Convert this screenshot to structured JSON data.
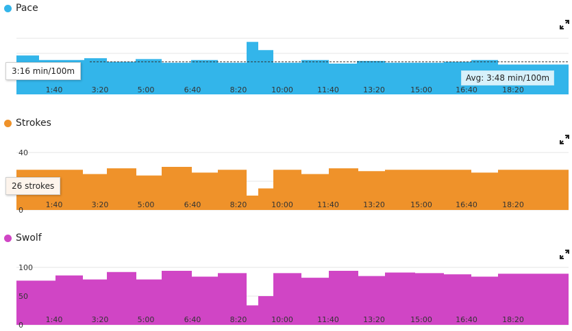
{
  "chart_data": [
    {
      "type": "area",
      "title": "Pace",
      "color": "#33b5ea",
      "x_ticks": [
        "1:40",
        "3:20",
        "5:00",
        "6:40",
        "8:20",
        "10:00",
        "11:40",
        "13:20",
        "15:00",
        "16:40",
        "18:20"
      ],
      "tooltip": "3:16 min/100m",
      "average_label": "Avg: 3:48 min/100m",
      "step_series": [
        {
          "start": 0,
          "end": 33,
          "value": 3.45
        },
        {
          "start": 33,
          "end": 57,
          "value": 3.7
        },
        {
          "start": 57,
          "end": 99,
          "value": 3.7
        },
        {
          "start": 99,
          "end": 132,
          "value": 3.6
        },
        {
          "start": 132,
          "end": 174,
          "value": 3.8
        },
        {
          "start": 174,
          "end": 212,
          "value": 3.65
        },
        {
          "start": 212,
          "end": 255,
          "value": 3.85
        },
        {
          "start": 255,
          "end": 294,
          "value": 3.7
        },
        {
          "start": 294,
          "end": 336,
          "value": 3.85
        },
        {
          "start": 336,
          "end": 353,
          "value": 2.7
        },
        {
          "start": 353,
          "end": 375,
          "value": 3.15
        },
        {
          "start": 375,
          "end": 416,
          "value": 3.85
        },
        {
          "start": 416,
          "end": 456,
          "value": 3.7
        },
        {
          "start": 456,
          "end": 497,
          "value": 3.9
        },
        {
          "start": 497,
          "end": 538,
          "value": 3.75
        },
        {
          "start": 538,
          "end": 582,
          "value": 3.85
        },
        {
          "start": 582,
          "end": 624,
          "value": 3.85
        },
        {
          "start": 624,
          "end": 664,
          "value": 3.8
        },
        {
          "start": 664,
          "end": 703,
          "value": 3.7
        },
        {
          "start": 703,
          "end": 830,
          "value": 3.95
        }
      ],
      "average": 3.8,
      "ylim": [
        2.5,
        5.6
      ],
      "inverted": true
    },
    {
      "type": "area",
      "title": "Strokes",
      "color": "#ef922a",
      "y_ticks": [
        "0",
        "20",
        "40"
      ],
      "x_ticks": [
        "1:40",
        "3:20",
        "5:00",
        "6:40",
        "8:20",
        "10:00",
        "11:40",
        "13:20",
        "15:00",
        "16:40",
        "18:20"
      ],
      "tooltip": "26 strokes",
      "step_series": [
        {
          "start": 0,
          "end": 57,
          "value": 28
        },
        {
          "start": 57,
          "end": 97,
          "value": 28
        },
        {
          "start": 97,
          "end": 132,
          "value": 25
        },
        {
          "start": 132,
          "end": 175,
          "value": 29
        },
        {
          "start": 175,
          "end": 212,
          "value": 24
        },
        {
          "start": 212,
          "end": 256,
          "value": 30
        },
        {
          "start": 256,
          "end": 294,
          "value": 26
        },
        {
          "start": 294,
          "end": 336,
          "value": 28
        },
        {
          "start": 336,
          "end": 353,
          "value": 10
        },
        {
          "start": 353,
          "end": 375,
          "value": 15
        },
        {
          "start": 375,
          "end": 416,
          "value": 28
        },
        {
          "start": 416,
          "end": 456,
          "value": 25
        },
        {
          "start": 456,
          "end": 499,
          "value": 29
        },
        {
          "start": 499,
          "end": 538,
          "value": 27
        },
        {
          "start": 538,
          "end": 582,
          "value": 28
        },
        {
          "start": 582,
          "end": 624,
          "value": 28
        },
        {
          "start": 624,
          "end": 664,
          "value": 28
        },
        {
          "start": 664,
          "end": 703,
          "value": 26
        },
        {
          "start": 703,
          "end": 830,
          "value": 28
        }
      ],
      "ylim": [
        0,
        40
      ]
    },
    {
      "type": "area",
      "title": "Swolf",
      "color": "#d045c5",
      "y_ticks": [
        "0",
        "50",
        "100"
      ],
      "x_ticks": [
        "1:40",
        "3:20",
        "5:00",
        "6:40",
        "8:20",
        "10:00",
        "11:40",
        "13:20",
        "15:00",
        "16:40",
        "18:20"
      ],
      "step_series": [
        {
          "start": 0,
          "end": 57,
          "value": 77
        },
        {
          "start": 57,
          "end": 97,
          "value": 86
        },
        {
          "start": 97,
          "end": 132,
          "value": 79
        },
        {
          "start": 132,
          "end": 175,
          "value": 92
        },
        {
          "start": 175,
          "end": 212,
          "value": 79
        },
        {
          "start": 212,
          "end": 256,
          "value": 94
        },
        {
          "start": 256,
          "end": 294,
          "value": 84
        },
        {
          "start": 294,
          "end": 336,
          "value": 90
        },
        {
          "start": 336,
          "end": 353,
          "value": 34
        },
        {
          "start": 353,
          "end": 375,
          "value": 50
        },
        {
          "start": 375,
          "end": 416,
          "value": 90
        },
        {
          "start": 416,
          "end": 456,
          "value": 82
        },
        {
          "start": 456,
          "end": 499,
          "value": 94
        },
        {
          "start": 499,
          "end": 538,
          "value": 85
        },
        {
          "start": 538,
          "end": 582,
          "value": 91
        },
        {
          "start": 582,
          "end": 624,
          "value": 90
        },
        {
          "start": 624,
          "end": 664,
          "value": 88
        },
        {
          "start": 664,
          "end": 703,
          "value": 84
        },
        {
          "start": 703,
          "end": 830,
          "value": 89
        }
      ],
      "ylim": [
        0,
        100
      ]
    }
  ]
}
